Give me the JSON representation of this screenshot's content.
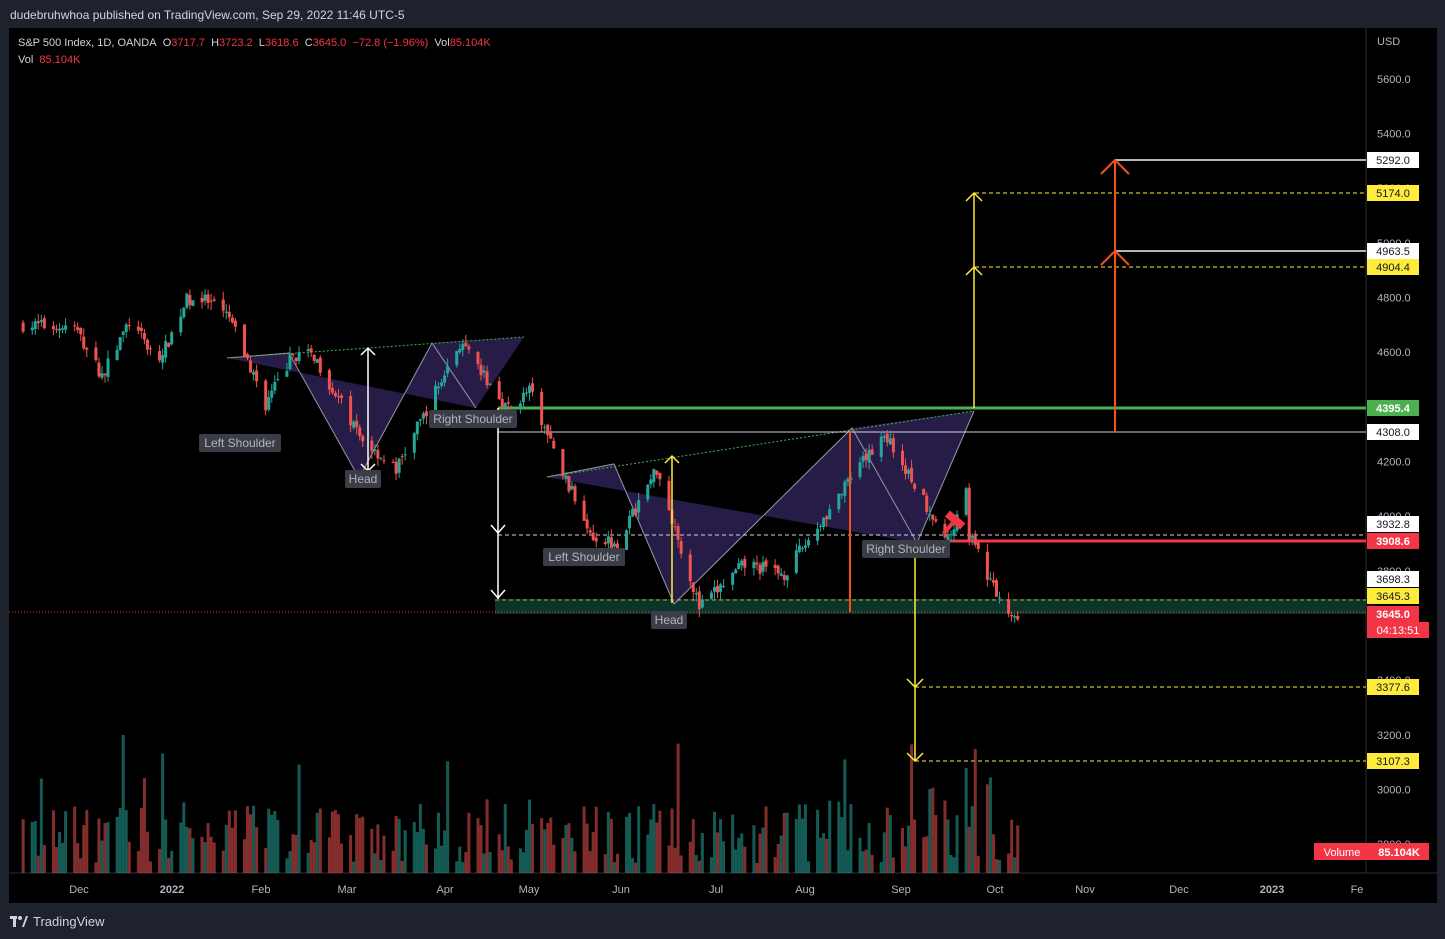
{
  "header": {
    "published": "dudebruhwhoa published on TradingView.com, Sep 29, 2022 11:46 UTC-5"
  },
  "legend": {
    "symbol": "S&P 500 Index, 1D, OANDA",
    "o_label": "O",
    "o_value": "3717.7",
    "h_label": "H",
    "h_value": "3723.2",
    "l_label": "L",
    "l_value": "3618.6",
    "c_label": "C",
    "c_value": "3645.0",
    "change": "−72.8 (−1.96%)",
    "vol_label": "Vol",
    "vol_value": "85.104K",
    "vol2_label": "Vol",
    "vol2_value": "85.104K"
  },
  "footer": {
    "brand": "TradingView"
  },
  "colors": {
    "up": "#26a69a",
    "down": "#ef5350",
    "green_line": "#4caf50",
    "red_line": "#f23645",
    "yellow": "#ffeb3b",
    "orange": "#f4511e",
    "pattern_fill": "#2a1f4f"
  },
  "chart_data": {
    "type": "candlestick",
    "currency_label": "USD",
    "y_ticks": [
      "5600.0",
      "5400.0",
      "5200.0",
      "5000.0",
      "4800.0",
      "4600.0",
      "4200.0",
      "4000.0",
      "3800.0",
      "3400.0",
      "3200.0",
      "3000.0",
      "2800.0"
    ],
    "x_ticks": [
      "Dec",
      "2022",
      "Feb",
      "Mar",
      "Apr",
      "May",
      "Jun",
      "Jul",
      "Aug",
      "Sep",
      "Oct",
      "Nov",
      "Dec",
      "2023",
      "Fe"
    ],
    "level_labels": [
      {
        "value": 5292.0,
        "text": "5292.0",
        "style": "white"
      },
      {
        "value": 5174.0,
        "text": "5174.0",
        "style": "yellow"
      },
      {
        "value": 4963.5,
        "text": "4963.5",
        "style": "white"
      },
      {
        "value": 4904.4,
        "text": "4904.4",
        "style": "yellow"
      },
      {
        "value": 4395.4,
        "text": "4395.4",
        "style": "green"
      },
      {
        "value": 4308.0,
        "text": "4308.0",
        "style": "white"
      },
      {
        "value": 3932.8,
        "text": "3932.8",
        "style": "white"
      },
      {
        "value": 3908.6,
        "text": "3908.6",
        "style": "red"
      },
      {
        "value": 3698.3,
        "text": "3698.3",
        "style": "white"
      },
      {
        "value": 3645.3,
        "text": "3645.3",
        "style": "yellow"
      },
      {
        "value": 3645.0,
        "text": "3645.0",
        "style": "price"
      },
      {
        "value": 3377.6,
        "text": "3377.6",
        "style": "yellow"
      },
      {
        "value": 3107.3,
        "text": "3107.3",
        "style": "yellow"
      }
    ],
    "countdown": "04:13:51",
    "volume_label": "Volume",
    "volume_value": "85.104K",
    "pattern_labels": {
      "ls1": "Left Shoulder",
      "h1": "Head",
      "rs1": "Right Shoulder",
      "ls2": "Left Shoulder",
      "h2": "Head",
      "rs2": "Right Shoulder"
    },
    "keypoints": [
      {
        "date": "2021-11-05",
        "close": 4700
      },
      {
        "date": "2021-11-22",
        "close": 4690
      },
      {
        "date": "2021-12-01",
        "close": 4513
      },
      {
        "date": "2021-12-10",
        "close": 4710
      },
      {
        "date": "2021-12-20",
        "close": 4568
      },
      {
        "date": "2021-12-29",
        "close": 4793
      },
      {
        "date": "2022-01-03",
        "close": 4796
      },
      {
        "date": "2022-01-12",
        "close": 4726
      },
      {
        "date": "2022-01-24",
        "close": 4410
      },
      {
        "date": "2022-02-02",
        "close": 4590
      },
      {
        "date": "2022-02-09",
        "close": 4587
      },
      {
        "date": "2022-02-24",
        "close": 4290
      },
      {
        "date": "2022-03-08",
        "close": 4170
      },
      {
        "date": "2022-03-29",
        "close": 4631
      },
      {
        "date": "2022-04-14",
        "close": 4392
      },
      {
        "date": "2022-04-21",
        "close": 4460
      },
      {
        "date": "2022-05-02",
        "close": 4155
      },
      {
        "date": "2022-05-12",
        "close": 3930
      },
      {
        "date": "2022-05-20",
        "close": 3901
      },
      {
        "date": "2022-06-02",
        "close": 4176
      },
      {
        "date": "2022-06-16",
        "close": 3666
      },
      {
        "date": "2022-07-01",
        "close": 3825
      },
      {
        "date": "2022-07-14",
        "close": 3790
      },
      {
        "date": "2022-08-16",
        "close": 4305
      },
      {
        "date": "2022-09-06",
        "close": 3908
      },
      {
        "date": "2022-09-12",
        "close": 4110
      },
      {
        "date": "2022-09-13",
        "close": 3932
      },
      {
        "date": "2022-09-23",
        "close": 3693
      },
      {
        "date": "2022-09-27",
        "close": 3647
      },
      {
        "date": "2022-09-29",
        "close": 3645
      }
    ]
  }
}
